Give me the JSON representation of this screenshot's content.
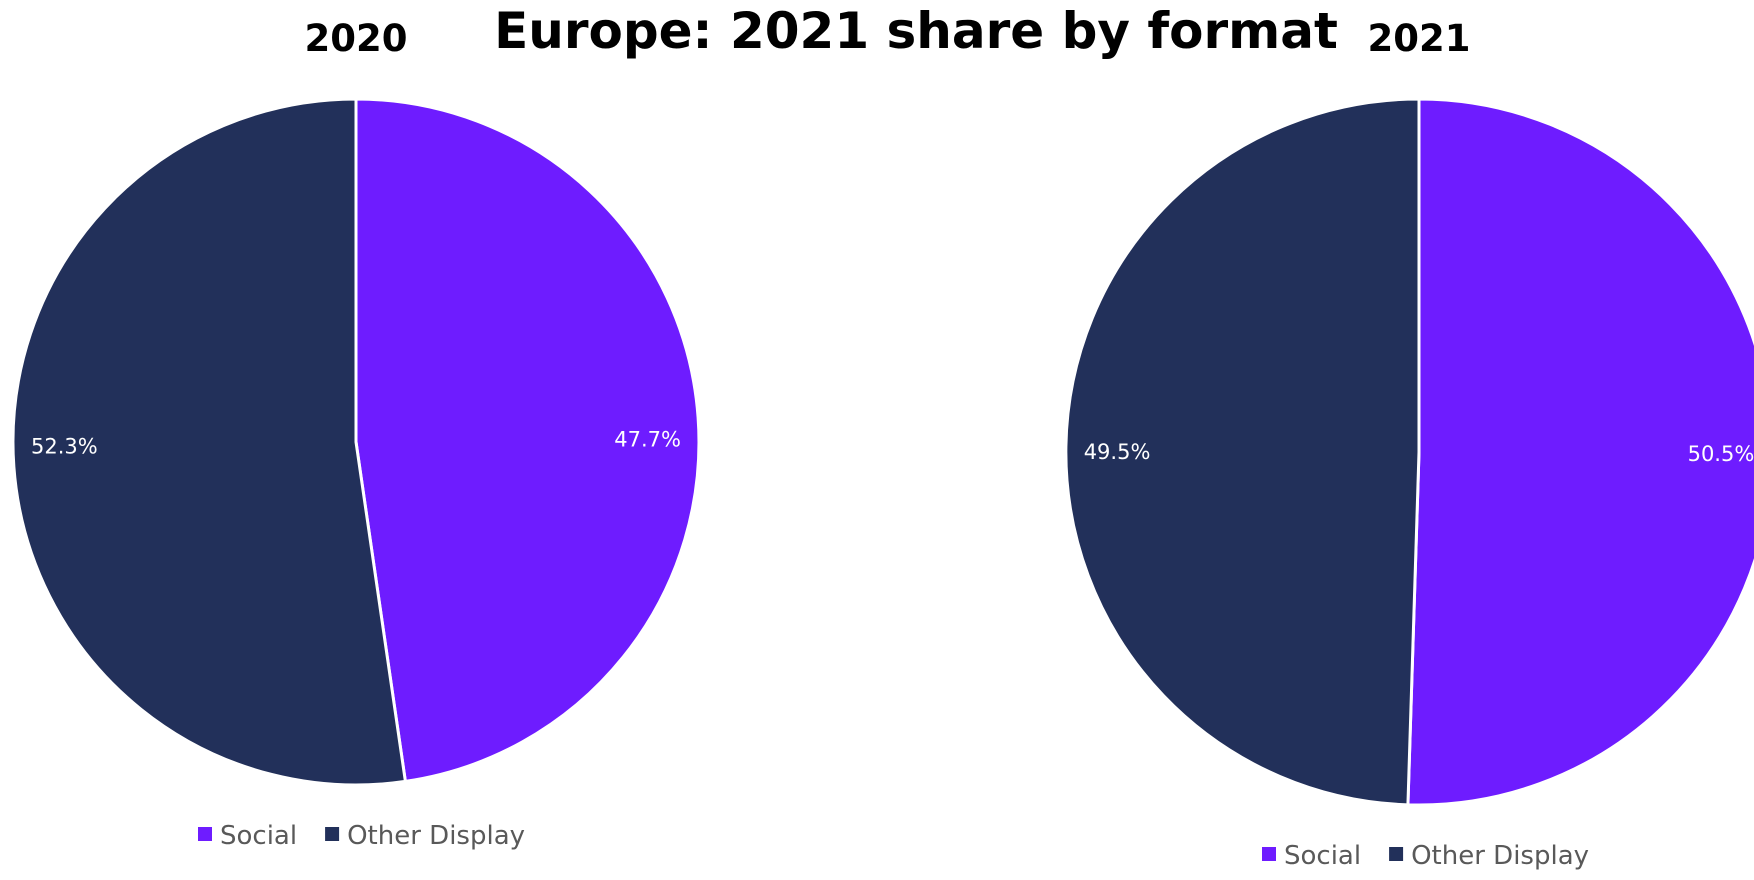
{
  "chart_data": {
    "type": "pie",
    "title": "Europe: 2021 share by format",
    "colors": {
      "Social": "#6e1cff",
      "Other Display": "#22305a"
    },
    "charts": [
      {
        "title": "2020",
        "slices": [
          {
            "label": "Social",
            "value": 47.7,
            "display": "47.7%"
          },
          {
            "label": "Other Display",
            "value": 52.3,
            "display": "52.3%"
          }
        ],
        "legend": [
          "Social",
          "Other Display"
        ],
        "legend_position": "bottom"
      },
      {
        "title": "2021",
        "slices": [
          {
            "label": "Social",
            "value": 50.5,
            "display": "50.5%"
          },
          {
            "label": "Other Display",
            "value": 49.5,
            "display": "49.5%"
          }
        ],
        "legend": [
          "Social",
          "Other Display"
        ],
        "legend_position": "bottom"
      }
    ]
  }
}
